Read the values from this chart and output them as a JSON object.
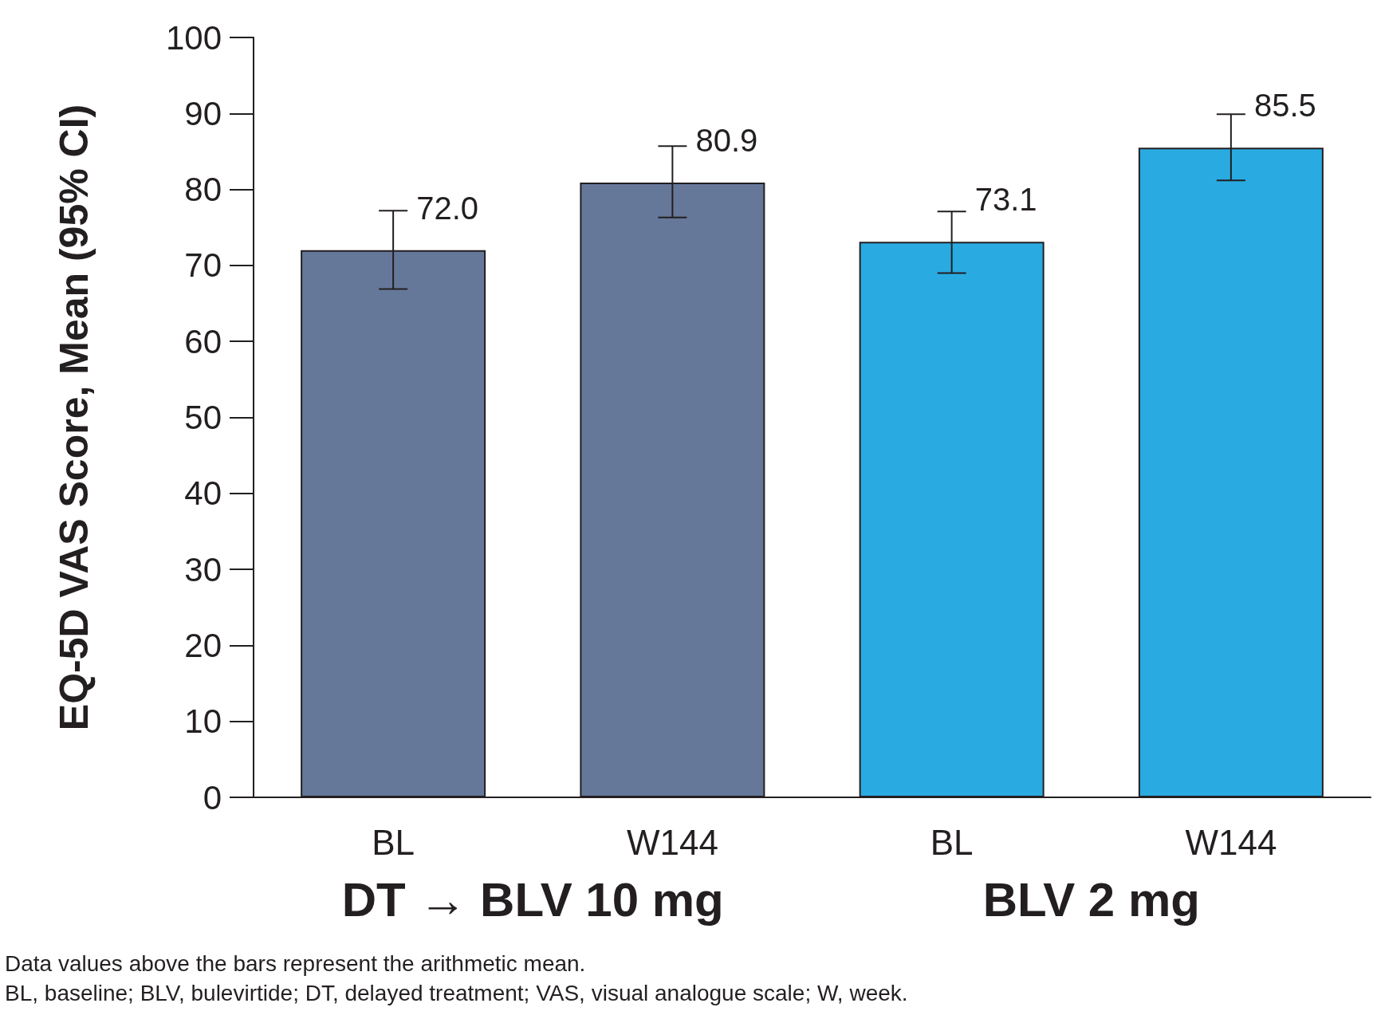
{
  "chart_data": {
    "type": "bar",
    "ylabel": "EQ-5D VAS Score, Mean (95% CI)",
    "categories": [
      "BL",
      "W144",
      "BL",
      "W144"
    ],
    "values": [
      72.0,
      80.9,
      73.1,
      85.5
    ],
    "value_labels": [
      "72.0",
      "80.9",
      "73.1",
      "85.5"
    ],
    "errors": [
      [
        66.9,
        77.2
      ],
      [
        76.3,
        85.7
      ],
      [
        69.0,
        77.1
      ],
      [
        81.2,
        89.9
      ]
    ],
    "colors": [
      "#66789a",
      "#66789a",
      "#29abe2",
      "#29abe2"
    ],
    "ylim": [
      0,
      100
    ],
    "yticks": [
      0,
      10,
      20,
      30,
      40,
      50,
      60,
      70,
      80,
      90,
      100
    ],
    "grid": false,
    "annotations": [
      "DT → BLV 10 mg",
      "BLV 2 mg",
      "Data values above the bars represent the arithmetic mean.",
      "BL, baseline; BLV, bulevirtide; DT, delayed treatment; VAS, visual analogue scale; W, week."
    ]
  }
}
